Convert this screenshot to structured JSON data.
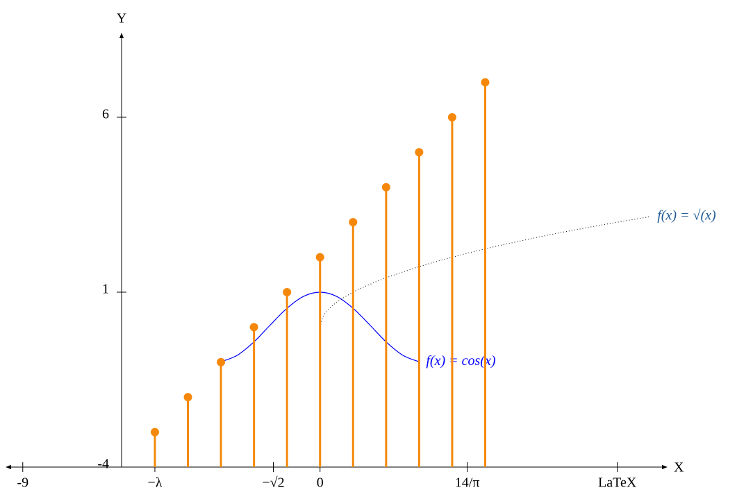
{
  "chart_data": {
    "type": "stem",
    "x_label": "X",
    "y_label": "Y",
    "x": [
      -5,
      -4,
      -3,
      -2,
      -1,
      0,
      1,
      2,
      3,
      4,
      5
    ],
    "values": [
      -3,
      -2,
      -1,
      0,
      1,
      2,
      3,
      4,
      5,
      6,
      7
    ],
    "color": "#f5880a",
    "series": [
      {
        "name": "f(x) = cos(x)",
        "color": "#0000ff",
        "style": "solid",
        "x": [
          -3,
          -2.5,
          -2,
          -1.5,
          -1,
          -0.5,
          0,
          0.5,
          1,
          1.5,
          2,
          2.5,
          3
        ],
        "values": [
          -0.99,
          -0.8,
          -0.42,
          0.07,
          0.54,
          0.88,
          1,
          0.88,
          0.54,
          0.07,
          -0.42,
          -0.8,
          -0.99
        ]
      },
      {
        "name": "f(x) = √(x)",
        "color": "#1f5a96",
        "line_color": "#000000",
        "style": "dotted",
        "x": [
          0,
          0.1,
          0.25,
          0.5,
          1,
          1.5,
          2,
          3,
          4,
          5,
          6,
          7,
          8,
          9,
          10
        ],
        "values": [
          0,
          0.32,
          0.5,
          0.71,
          1,
          1.22,
          1.41,
          1.73,
          2,
          2.24,
          2.45,
          2.65,
          2.83,
          3,
          3.16
        ]
      }
    ],
    "xlim": [
      -9.5,
      10.5
    ],
    "ylim": [
      -4,
      8.4
    ],
    "xticks": [
      -9,
      {
        "value": -5,
        "label": "−λ"
      },
      {
        "value": -1.414,
        "label": "−√2"
      },
      0,
      {
        "value": 4.456,
        "label": "14/π"
      },
      {
        "value": 9,
        "label": "LaTeX"
      }
    ],
    "yticks": [
      -4,
      1,
      6
    ],
    "grid": false
  }
}
